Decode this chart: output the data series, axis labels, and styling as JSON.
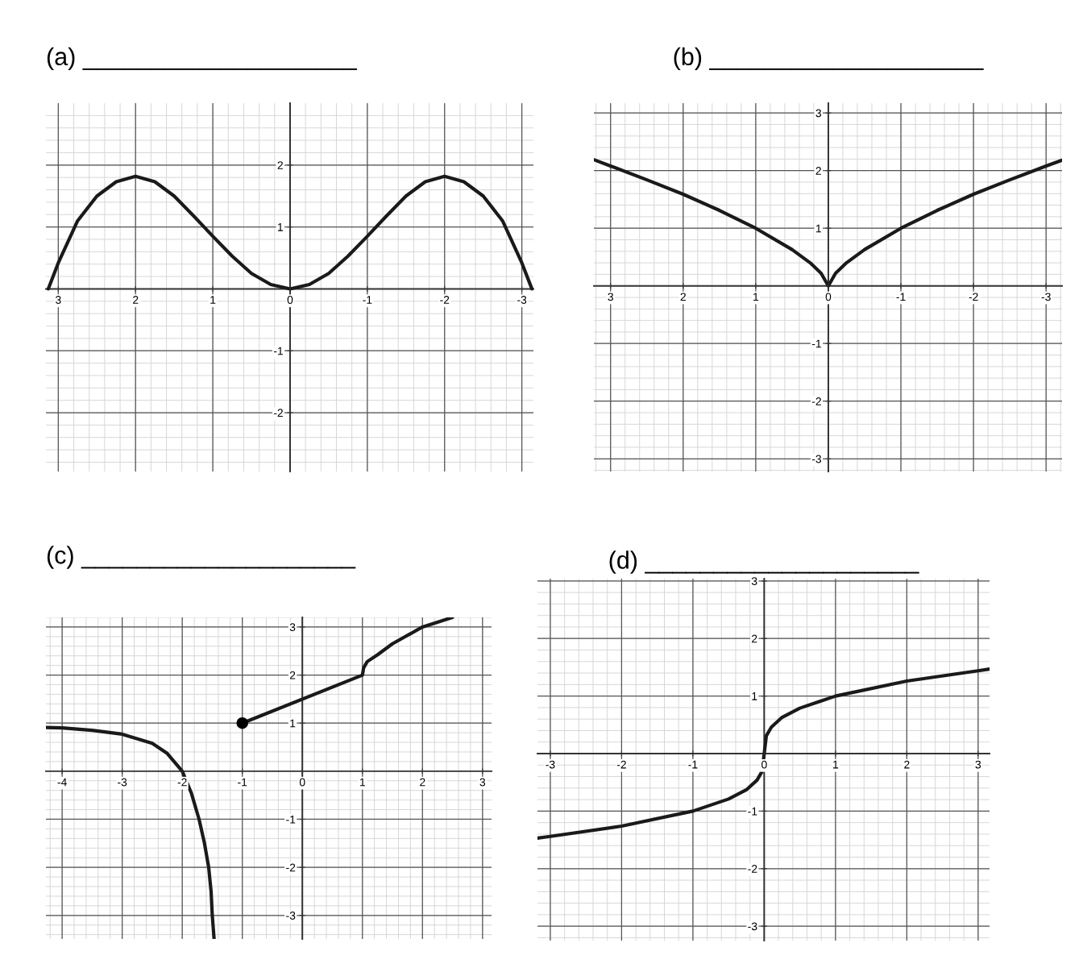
{
  "chart_data": [
    {
      "type": "line",
      "title": "(a) ____________________",
      "xlim": [
        3.16,
        -3.15
      ],
      "ylim": [
        -2.95,
        3.0
      ],
      "xticks": [
        3,
        2,
        1,
        0,
        -1,
        -2,
        -3
      ],
      "yticks": [
        -2,
        -1,
        1,
        2
      ],
      "grid": true,
      "marker": "none",
      "line_style": "solid",
      "series": [
        {
          "color": "#1a1a1a",
          "x": [
            3.13,
            3,
            2.75,
            2.5,
            2.25,
            2,
            1.75,
            1.5,
            1.25,
            1,
            0.75,
            0.5,
            0.25,
            0,
            -0.25,
            -0.5,
            -0.75,
            -1,
            -1.25,
            -1.5,
            -1.75,
            -2,
            -2.25,
            -2.5,
            -2.75,
            -3,
            -3.13
          ],
          "values": [
            0,
            0.42,
            1.1,
            1.5,
            1.73,
            1.82,
            1.73,
            1.5,
            1.18,
            0.85,
            0.53,
            0.25,
            0.07,
            0,
            0.07,
            0.25,
            0.53,
            0.85,
            1.18,
            1.5,
            1.73,
            1.82,
            1.73,
            1.5,
            1.1,
            0.42,
            0
          ]
        }
      ]
    },
    {
      "type": "line",
      "title": "(b) ____________________",
      "xlim": [
        3.23,
        -3.22
      ],
      "ylim": [
        -3.22,
        3.17
      ],
      "xticks": [
        3,
        2,
        1,
        0,
        -1,
        -2,
        -3
      ],
      "yticks": [
        -3,
        -2,
        -1,
        1,
        2,
        3
      ],
      "grid": true,
      "marker": "none",
      "line_style": "solid",
      "series": [
        {
          "color": "#1a1a1a",
          "x": [
            3.23,
            3,
            2.5,
            2,
            1.5,
            1,
            0.5,
            0.25,
            0.1,
            0,
            -0.1,
            -0.25,
            -0.5,
            -1,
            -1.5,
            -2,
            -2.5,
            -3,
            -3.22
          ],
          "values": [
            2.19,
            2.08,
            1.84,
            1.59,
            1.31,
            1,
            0.63,
            0.4,
            0.22,
            0,
            0.22,
            0.4,
            0.63,
            1,
            1.31,
            1.59,
            1.84,
            2.08,
            2.18
          ]
        }
      ]
    },
    {
      "type": "line",
      "title": "(c) ____________________",
      "xlim": [
        -4.27,
        3.15
      ],
      "ylim": [
        -3.49,
        3.2
      ],
      "xticks": [
        -4,
        -3,
        -2,
        -1,
        0,
        1,
        2,
        3
      ],
      "yticks": [
        -3,
        -2,
        -1,
        1,
        2,
        3
      ],
      "grid": true,
      "marker": "none",
      "line_style": "solid",
      "series": [
        {
          "color": "#1a1a1a",
          "x": [
            -4.27,
            -4,
            -3.5,
            -3,
            -2.5,
            -2.25,
            -2,
            -1.85,
            -1.72,
            -1.63,
            -1.56,
            -1.52,
            -1.5,
            -1.47
          ],
          "values": [
            0.91,
            0.9,
            0.85,
            0.77,
            0.58,
            0.37,
            0,
            -0.45,
            -1,
            -1.5,
            -2,
            -2.5,
            -3,
            -3.49
          ]
        },
        {
          "color": "#1a1a1a",
          "x": [
            -1,
            1,
            1.02,
            1.08,
            1.25,
            1.5,
            2,
            2.5
          ],
          "values": [
            1,
            2,
            2.15,
            2.28,
            2.42,
            2.65,
            3,
            3.2
          ]
        },
        {
          "type": "scatter",
          "marker": "circle",
          "color": "#000000",
          "x": [
            -1
          ],
          "values": [
            1
          ]
        }
      ]
    },
    {
      "type": "line",
      "title": "(d) ____________________",
      "xlim": [
        -3.18,
        3.16
      ],
      "ylim": [
        -3.25,
        3.04
      ],
      "xticks": [
        -3,
        -2,
        -1,
        0,
        1,
        2,
        3
      ],
      "yticks": [
        -3,
        -2,
        -1,
        1,
        2,
        3
      ],
      "grid": true,
      "marker": "none",
      "line_style": "solid",
      "series": [
        {
          "color": "#1a1a1a",
          "x": [
            -3.18,
            -3,
            -2,
            -1,
            -0.5,
            -0.25,
            -0.1,
            -0.03,
            0,
            0.03,
            0.1,
            0.25,
            0.5,
            1,
            2,
            3,
            3.16
          ],
          "values": [
            -1.47,
            -1.44,
            -1.26,
            -1,
            -0.79,
            -0.63,
            -0.46,
            -0.31,
            0,
            0.31,
            0.46,
            0.63,
            0.79,
            1,
            1.26,
            1.44,
            1.47
          ]
        }
      ]
    }
  ]
}
